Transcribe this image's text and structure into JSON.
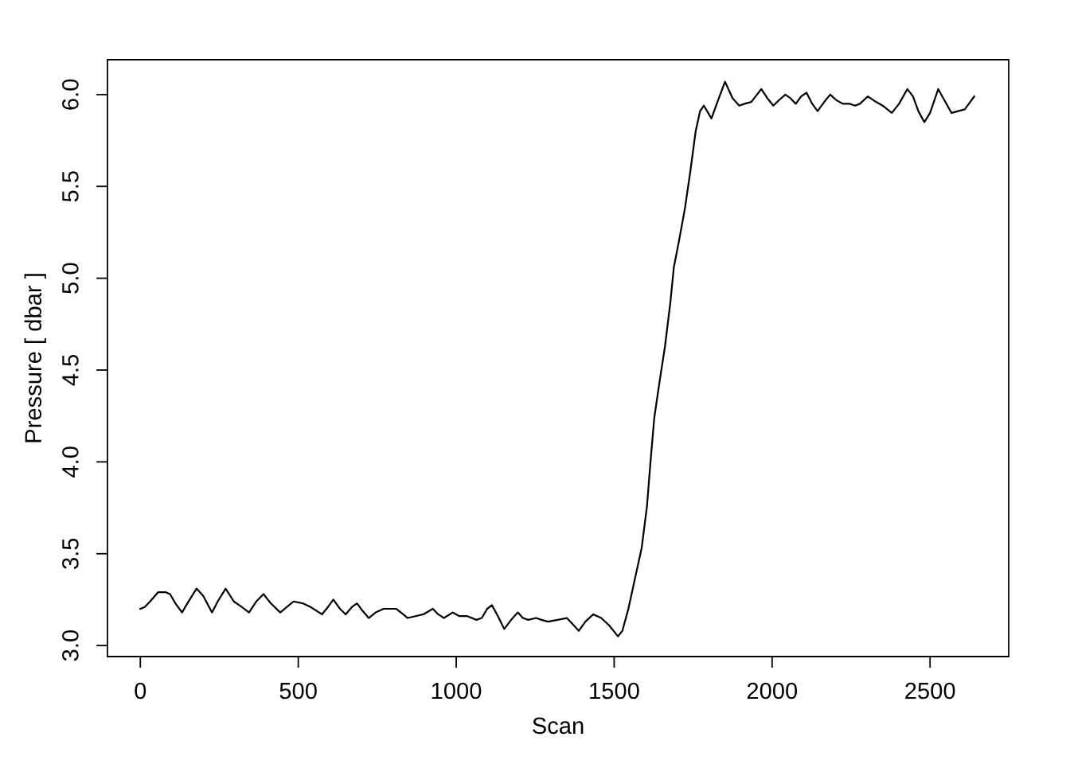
{
  "chart_data": {
    "type": "line",
    "xlabel": "Scan",
    "ylabel": "Pressure [ dbar ]",
    "x": [
      0,
      14,
      31,
      56,
      69,
      81,
      94,
      111,
      132,
      149,
      178,
      199,
      227,
      245,
      270,
      296,
      321,
      344,
      367,
      390,
      413,
      443,
      464,
      485,
      514,
      539,
      575,
      594,
      611,
      632,
      650,
      670,
      686,
      703,
      723,
      745,
      770,
      791,
      810,
      825,
      846,
      871,
      896,
      926,
      943,
      961,
      989,
      1010,
      1035,
      1064,
      1081,
      1098,
      1113,
      1132,
      1152,
      1174,
      1195,
      1211,
      1228,
      1253,
      1270,
      1291,
      1321,
      1350,
      1367,
      1388,
      1409,
      1434,
      1459,
      1484,
      1512,
      1526,
      1545,
      1564,
      1587,
      1604,
      1615,
      1627,
      1644,
      1661,
      1678,
      1689,
      1706,
      1724,
      1741,
      1758,
      1772,
      1784,
      1808,
      1829,
      1851,
      1875,
      1896,
      1913,
      1934,
      1966,
      1985,
      2004,
      2022,
      2042,
      2058,
      2075,
      2092,
      2109,
      2127,
      2144,
      2165,
      2184,
      2203,
      2224,
      2245,
      2263,
      2278,
      2303,
      2329,
      2350,
      2379,
      2402,
      2428,
      2446,
      2463,
      2482,
      2500,
      2526,
      2542,
      2568,
      2589,
      2610,
      2623,
      2640
    ],
    "series": [
      {
        "color": "#000000",
        "values": [
          3.2,
          3.21,
          3.24,
          3.29,
          3.29,
          3.29,
          3.28,
          3.23,
          3.18,
          3.23,
          3.31,
          3.27,
          3.18,
          3.24,
          3.31,
          3.24,
          3.21,
          3.18,
          3.24,
          3.28,
          3.23,
          3.18,
          3.21,
          3.24,
          3.23,
          3.21,
          3.17,
          3.21,
          3.25,
          3.2,
          3.17,
          3.21,
          3.23,
          3.19,
          3.15,
          3.18,
          3.2,
          3.2,
          3.2,
          3.18,
          3.15,
          3.16,
          3.17,
          3.2,
          3.17,
          3.15,
          3.18,
          3.16,
          3.16,
          3.14,
          3.15,
          3.2,
          3.22,
          3.16,
          3.09,
          3.14,
          3.18,
          3.15,
          3.14,
          3.15,
          3.14,
          3.13,
          3.14,
          3.15,
          3.12,
          3.08,
          3.13,
          3.17,
          3.15,
          3.11,
          3.05,
          3.08,
          3.2,
          3.35,
          3.53,
          3.76,
          4.0,
          4.24,
          4.44,
          4.63,
          4.87,
          5.06,
          5.21,
          5.38,
          5.58,
          5.8,
          5.91,
          5.94,
          5.87,
          5.97,
          6.07,
          5.98,
          5.94,
          5.95,
          5.96,
          6.03,
          5.98,
          5.94,
          5.97,
          6.0,
          5.98,
          5.95,
          5.99,
          6.01,
          5.95,
          5.91,
          5.96,
          6.0,
          5.97,
          5.95,
          5.95,
          5.94,
          5.95,
          5.99,
          5.96,
          5.94,
          5.9,
          5.95,
          6.03,
          5.99,
          5.91,
          5.85,
          5.9,
          6.03,
          5.98,
          5.9,
          5.91,
          5.92,
          5.95,
          5.99
        ]
      }
    ],
    "xlim": [
      -104,
      2749
    ],
    "ylim": [
      2.94,
      6.19
    ],
    "xticks": [
      0,
      500,
      1000,
      1500,
      2000,
      2500
    ],
    "yticks": [
      {
        "value": 3.0,
        "label": "3.0"
      },
      {
        "value": 3.5,
        "label": "3.5"
      },
      {
        "value": 4.0,
        "label": "4.0"
      },
      {
        "value": 4.5,
        "label": "4.5"
      },
      {
        "value": 5.0,
        "label": "5.0"
      },
      {
        "value": 5.5,
        "label": "5.5"
      },
      {
        "value": 6.0,
        "label": "6.0"
      }
    ],
    "line_style": "solid"
  }
}
